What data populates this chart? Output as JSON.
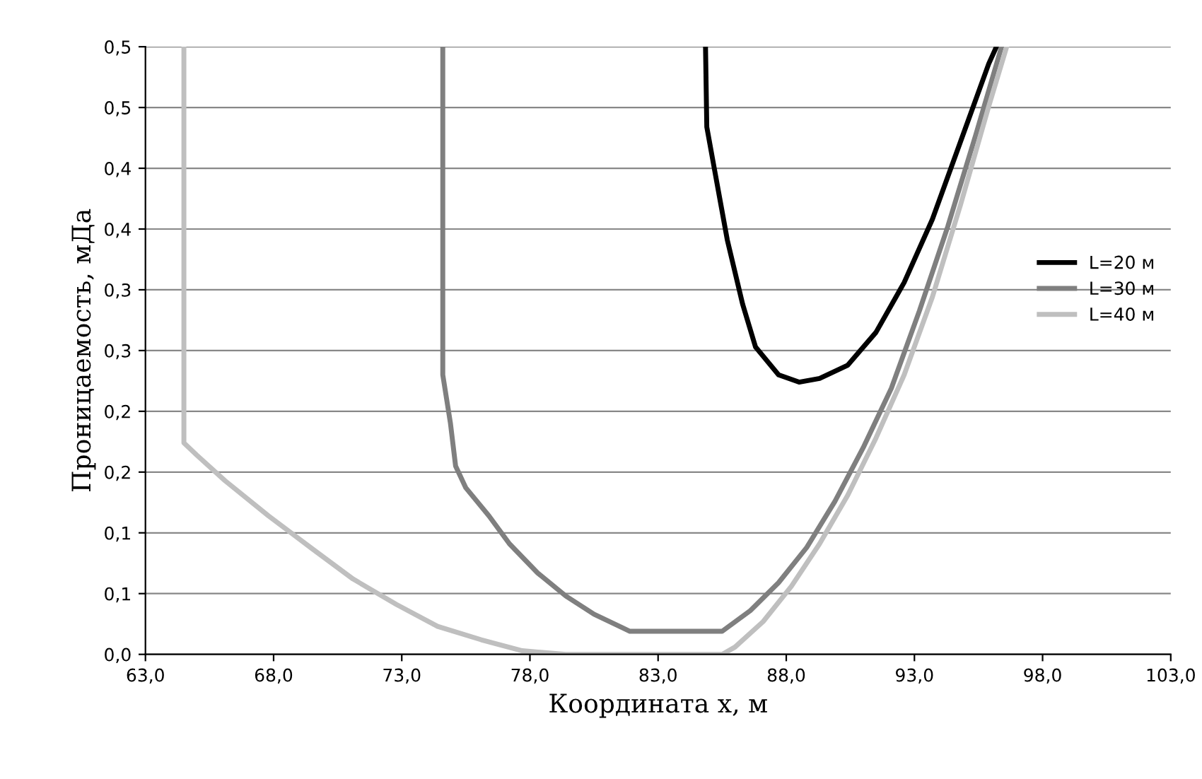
{
  "chart_data": {
    "type": "line",
    "xlabel": "Координата x, м",
    "ylabel": "Проницаемость, мДа",
    "xlim": [
      63,
      103
    ],
    "ylim": [
      0,
      0.5
    ],
    "xticks": [
      {
        "value": 63,
        "label": "63,0"
      },
      {
        "value": 68,
        "label": "68,0"
      },
      {
        "value": 73,
        "label": "73,0"
      },
      {
        "value": 78,
        "label": "78,0"
      },
      {
        "value": 83,
        "label": "83,0"
      },
      {
        "value": 88,
        "label": "88,0"
      },
      {
        "value": 93,
        "label": "93,0"
      },
      {
        "value": 98,
        "label": "98,0"
      },
      {
        "value": 103,
        "label": "103,0"
      }
    ],
    "yticks": [
      {
        "value": 0,
        "label": "0,0"
      },
      {
        "value": 0.05,
        "label": "0,1"
      },
      {
        "value": 0.1,
        "label": "0,1"
      },
      {
        "value": 0.15,
        "label": "0,2"
      },
      {
        "value": 0.2,
        "label": "0,2"
      },
      {
        "value": 0.25,
        "label": "0,3"
      },
      {
        "value": 0.3,
        "label": "0,3"
      },
      {
        "value": 0.35,
        "label": "0,4"
      },
      {
        "value": 0.4,
        "label": "0,4"
      },
      {
        "value": 0.45,
        "label": "0,5"
      },
      {
        "value": 0.5,
        "label": "0,5"
      }
    ],
    "grid": "y",
    "legend": "right",
    "marker": "none",
    "line_style": "solid",
    "series": [
      {
        "name": "L=20 м",
        "color": "#000000",
        "x": [
          84.85,
          84.9,
          85.2,
          85.7,
          86.3,
          86.8,
          87.7,
          88.5,
          89.3,
          90.4,
          91.5,
          92.6,
          93.7,
          94.8,
          95.9,
          96.2
        ],
        "values": [
          0.5,
          0.434,
          0.399,
          0.341,
          0.288,
          0.253,
          0.23,
          0.224,
          0.227,
          0.238,
          0.265,
          0.306,
          0.358,
          0.422,
          0.486,
          0.5
        ]
      },
      {
        "name": "L=30 м",
        "color": "#7f7f7f",
        "x": [
          74.6,
          74.6,
          74.9,
          75.1,
          75.5,
          76.4,
          77.2,
          78.3,
          79.4,
          80.5,
          81.6,
          81.9,
          83.5,
          85.5,
          86.6,
          87.7,
          88.8,
          89.9,
          91.0,
          92.1,
          93.2,
          94.3,
          95.4,
          96.4
        ],
        "values": [
          0.5,
          0.23,
          0.19,
          0.155,
          0.137,
          0.114,
          0.091,
          0.067,
          0.048,
          0.033,
          0.022,
          0.019,
          0.019,
          0.019,
          0.036,
          0.059,
          0.088,
          0.126,
          0.17,
          0.219,
          0.283,
          0.352,
          0.428,
          0.5
        ]
      },
      {
        "name": "L=40 м",
        "color": "#bfbfbf",
        "x": [
          64.5,
          64.5,
          65.0,
          66.1,
          67.8,
          69.5,
          71.1,
          72.8,
          74.4,
          76.1,
          77.7,
          79.4,
          85.5,
          86.0,
          87.1,
          88.2,
          89.3,
          90.4,
          91.5,
          92.6,
          93.7,
          94.8,
          95.9,
          96.6
        ],
        "values": [
          0.5,
          0.174,
          0.164,
          0.143,
          0.114,
          0.087,
          0.062,
          0.041,
          0.023,
          0.012,
          0.003,
          0.0,
          0.0,
          0.006,
          0.027,
          0.056,
          0.091,
          0.131,
          0.178,
          0.23,
          0.294,
          0.37,
          0.451,
          0.5
        ]
      }
    ]
  }
}
